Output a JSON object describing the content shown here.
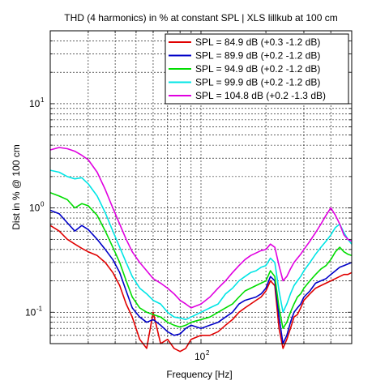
{
  "chart_data": {
    "type": "line",
    "title": "THD (4 harmonics) in % at constant SPL | XLS lillkub at 100 cm",
    "xlabel": "Frequency [Hz]",
    "ylabel": "Dist in % @ 100 cm",
    "xscale": "log",
    "yscale": "log",
    "xlim": [
      20,
      500
    ],
    "ylim": [
      0.05,
      50
    ],
    "grid": true,
    "legend_position": "top-right",
    "x_ticks": [
      {
        "base": "10",
        "exp": "2",
        "value": 100
      }
    ],
    "y_ticks": [
      {
        "base": "10",
        "exp": "1",
        "value": 10
      },
      {
        "base": "10",
        "exp": "0",
        "value": 1
      },
      {
        "base": "10",
        "exp": "-1",
        "value": 0.1
      }
    ],
    "series": [
      {
        "name": "SPL = 84.9 dB (+0.3 -1.2 dB)",
        "color": "#e00000",
        "x": [
          20,
          22,
          24,
          26,
          28,
          30,
          33,
          36,
          39,
          42,
          45,
          48,
          52,
          56,
          60,
          65,
          70,
          75,
          80,
          85,
          90,
          100,
          110,
          120,
          130,
          140,
          150,
          160,
          170,
          180,
          190,
          200,
          210,
          220,
          230,
          240,
          250,
          260,
          270,
          280,
          290,
          300,
          320,
          340,
          360,
          380,
          400,
          420,
          440,
          460,
          480,
          500
        ],
        "y": [
          0.68,
          0.6,
          0.5,
          0.45,
          0.41,
          0.38,
          0.35,
          0.3,
          0.24,
          0.18,
          0.12,
          0.09,
          0.055,
          0.045,
          0.1,
          0.05,
          0.055,
          0.045,
          0.042,
          0.045,
          0.055,
          0.06,
          0.06,
          0.065,
          0.075,
          0.085,
          0.1,
          0.11,
          0.12,
          0.13,
          0.14,
          0.16,
          0.2,
          0.18,
          0.07,
          0.045,
          0.055,
          0.07,
          0.09,
          0.095,
          0.11,
          0.13,
          0.15,
          0.17,
          0.18,
          0.19,
          0.2,
          0.21,
          0.22,
          0.23,
          0.23,
          0.24
        ]
      },
      {
        "name": "SPL = 89.9 dB (+0.2 -1.2 dB)",
        "color": "#0000c8",
        "x": [
          20,
          22,
          24,
          26,
          28,
          30,
          33,
          36,
          39,
          42,
          45,
          48,
          52,
          56,
          60,
          65,
          70,
          75,
          80,
          85,
          90,
          100,
          110,
          120,
          130,
          140,
          150,
          160,
          170,
          180,
          190,
          200,
          210,
          220,
          230,
          240,
          250,
          260,
          270,
          280,
          290,
          300,
          320,
          340,
          360,
          380,
          400,
          420,
          440,
          460,
          480,
          500
        ],
        "y": [
          0.95,
          0.88,
          0.72,
          0.6,
          0.68,
          0.62,
          0.5,
          0.4,
          0.32,
          0.24,
          0.16,
          0.11,
          0.09,
          0.08,
          0.085,
          0.075,
          0.065,
          0.06,
          0.062,
          0.07,
          0.075,
          0.07,
          0.075,
          0.08,
          0.09,
          0.1,
          0.12,
          0.13,
          0.135,
          0.14,
          0.15,
          0.17,
          0.22,
          0.2,
          0.09,
          0.05,
          0.06,
          0.08,
          0.1,
          0.11,
          0.12,
          0.14,
          0.16,
          0.19,
          0.2,
          0.21,
          0.23,
          0.25,
          0.27,
          0.28,
          0.29,
          0.3
        ]
      },
      {
        "name": "SPL = 94.9 dB (+0.2 -1.2 dB)",
        "color": "#00dd00",
        "x": [
          20,
          22,
          24,
          26,
          28,
          30,
          33,
          36,
          39,
          42,
          45,
          48,
          52,
          56,
          60,
          65,
          70,
          75,
          80,
          85,
          90,
          100,
          110,
          120,
          130,
          140,
          150,
          160,
          170,
          180,
          190,
          200,
          210,
          220,
          230,
          240,
          250,
          260,
          270,
          280,
          290,
          300,
          320,
          340,
          360,
          380,
          400,
          420,
          440,
          460,
          480,
          500
        ],
        "y": [
          1.4,
          1.3,
          1.2,
          1.0,
          1.1,
          1.05,
          0.85,
          0.6,
          0.42,
          0.3,
          0.2,
          0.14,
          0.11,
          0.1,
          0.095,
          0.09,
          0.08,
          0.075,
          0.072,
          0.075,
          0.08,
          0.085,
          0.09,
          0.1,
          0.11,
          0.12,
          0.14,
          0.16,
          0.17,
          0.18,
          0.19,
          0.2,
          0.25,
          0.22,
          0.11,
          0.07,
          0.08,
          0.1,
          0.12,
          0.14,
          0.15,
          0.17,
          0.2,
          0.23,
          0.26,
          0.28,
          0.32,
          0.38,
          0.42,
          0.38,
          0.36,
          0.35
        ]
      },
      {
        "name": "SPL = 99.9 dB (+0.2 -1.2 dB)",
        "color": "#00e5e5",
        "x": [
          20,
          22,
          24,
          26,
          28,
          30,
          33,
          36,
          39,
          42,
          45,
          48,
          52,
          56,
          60,
          65,
          70,
          75,
          80,
          85,
          90,
          100,
          110,
          120,
          130,
          140,
          150,
          160,
          170,
          180,
          190,
          200,
          210,
          220,
          230,
          240,
          250,
          260,
          270,
          280,
          290,
          300,
          320,
          340,
          360,
          380,
          400,
          420,
          440,
          460,
          480,
          500
        ],
        "y": [
          2.3,
          2.2,
          2.0,
          1.9,
          1.95,
          1.7,
          1.3,
          0.9,
          0.6,
          0.42,
          0.3,
          0.22,
          0.17,
          0.15,
          0.13,
          0.12,
          0.1,
          0.09,
          0.088,
          0.085,
          0.09,
          0.1,
          0.11,
          0.12,
          0.15,
          0.17,
          0.2,
          0.22,
          0.24,
          0.25,
          0.27,
          0.28,
          0.33,
          0.3,
          0.16,
          0.1,
          0.12,
          0.15,
          0.18,
          0.2,
          0.22,
          0.25,
          0.3,
          0.36,
          0.42,
          0.48,
          0.55,
          0.65,
          0.7,
          0.58,
          0.5,
          0.45
        ]
      },
      {
        "name": "SPL = 104.8 dB (+0.2 -1.3 dB)",
        "color": "#e000e0",
        "x": [
          20,
          22,
          24,
          26,
          28,
          30,
          33,
          36,
          39,
          42,
          45,
          48,
          52,
          56,
          60,
          65,
          70,
          75,
          80,
          85,
          90,
          100,
          110,
          120,
          130,
          140,
          150,
          160,
          170,
          180,
          190,
          200,
          210,
          220,
          230,
          240,
          250,
          260,
          270,
          280,
          290,
          300,
          320,
          340,
          360,
          380,
          400,
          420,
          440,
          460,
          480,
          500
        ],
        "y": [
          3.6,
          3.8,
          3.7,
          3.5,
          3.2,
          2.9,
          2.2,
          1.5,
          1.0,
          0.7,
          0.5,
          0.38,
          0.3,
          0.25,
          0.21,
          0.19,
          0.17,
          0.15,
          0.13,
          0.12,
          0.11,
          0.12,
          0.14,
          0.17,
          0.2,
          0.24,
          0.28,
          0.32,
          0.35,
          0.37,
          0.39,
          0.4,
          0.45,
          0.42,
          0.28,
          0.2,
          0.22,
          0.26,
          0.3,
          0.33,
          0.36,
          0.4,
          0.48,
          0.58,
          0.7,
          0.85,
          1.0,
          0.85,
          0.7,
          0.55,
          0.5,
          0.48
        ]
      }
    ]
  }
}
